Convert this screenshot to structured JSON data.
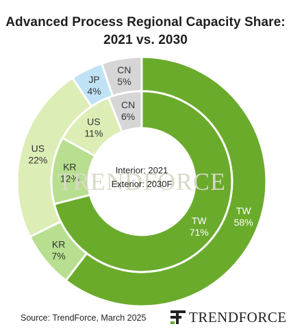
{
  "header": {
    "title_line1": "Advanced Process Regional Capacity Share:",
    "title_line2": "2021 vs. 2030"
  },
  "chart_data": {
    "type": "donut",
    "title": "Advanced Process Regional Capacity Share: 2021 vs. 2030",
    "rings": [
      {
        "name": "Interior: 2021",
        "slices": [
          {
            "label": "TW",
            "value": 71,
            "value_label": "71%",
            "color": "#6aab2c"
          },
          {
            "label": "KR",
            "value": 12,
            "value_label": "12%",
            "color": "#b7df8f"
          },
          {
            "label": "US",
            "value": 11,
            "value_label": "11%",
            "color": "#ddedb6"
          },
          {
            "label": "CN",
            "value": 6,
            "value_label": "6%",
            "color": "#d6d6d6"
          }
        ]
      },
      {
        "name": "Exterior: 2030F",
        "slices": [
          {
            "label": "TW",
            "value": 58,
            "value_label": "58%",
            "color": "#6aab2c"
          },
          {
            "label": "KR",
            "value": 7,
            "value_label": "7%",
            "color": "#b7df8f"
          },
          {
            "label": "US",
            "value": 22,
            "value_label": "22%",
            "color": "#ddedb6"
          },
          {
            "label": "JP",
            "value": 4,
            "value_label": "4%",
            "color": "#bfe3f5"
          },
          {
            "label": "CN",
            "value": 5,
            "value_label": "5%",
            "color": "#d6d6d6"
          }
        ]
      }
    ],
    "center_text": [
      "Interior: 2021",
      "Exterior: 2030F"
    ]
  },
  "watermark": "TRENDFORCE",
  "footer": {
    "source": "Source: TrendForce, March 2025",
    "brand": "TRENDFORCE"
  }
}
